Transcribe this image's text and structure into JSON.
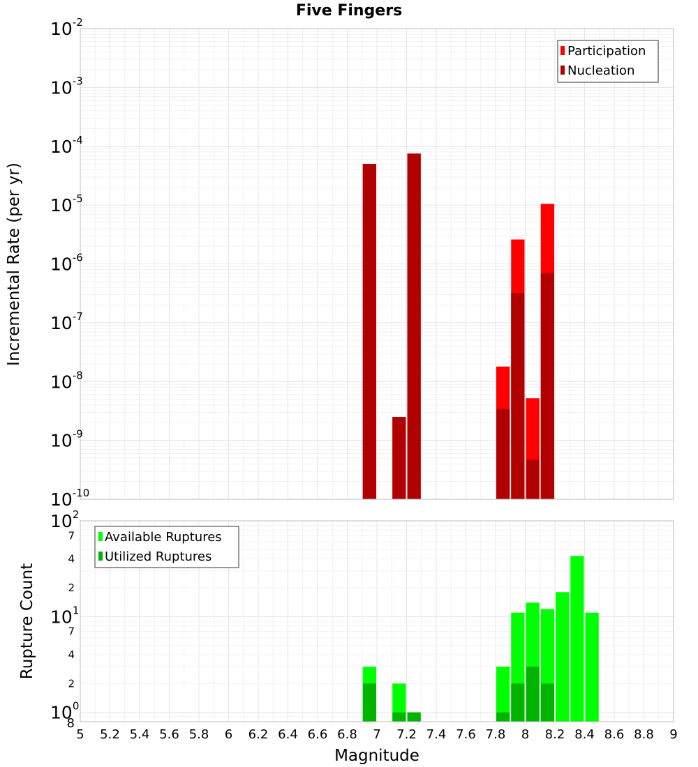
{
  "chart_data": [
    {
      "type": "bar",
      "title": "Five Fingers",
      "xlabel": "Magnitude",
      "ylabel": "Incremental Rate (per yr)",
      "yscale": "log",
      "ylim": [
        1e-10,
        0.01
      ],
      "xlim": [
        5,
        9
      ],
      "bar_width": 0.1,
      "grid": true,
      "legend_position": "top-right",
      "y_ticks": [
        {
          "base": "10",
          "exp": "-10",
          "value": 1e-10
        },
        {
          "base": "10",
          "exp": "-9",
          "value": 1e-09
        },
        {
          "base": "10",
          "exp": "-8",
          "value": 1e-08
        },
        {
          "base": "10",
          "exp": "-7",
          "value": 1e-07
        },
        {
          "base": "10",
          "exp": "-6",
          "value": 1e-06
        },
        {
          "base": "10",
          "exp": "-5",
          "value": 1e-05
        },
        {
          "base": "10",
          "exp": "-4",
          "value": 0.0001
        },
        {
          "base": "10",
          "exp": "-3",
          "value": 0.001
        },
        {
          "base": "10",
          "exp": "-2",
          "value": 0.01
        }
      ],
      "series": [
        {
          "name": "Participation",
          "color": "#ff0000",
          "x": [
            6.95,
            7.15,
            7.25,
            7.85,
            7.95,
            8.05,
            8.15
          ],
          "values": [
            5e-05,
            2.5e-09,
            7.5e-05,
            1.8e-08,
            2.6e-06,
            5.2e-09,
            1.05e-05
          ]
        },
        {
          "name": "Nucleation",
          "color": "#b00000",
          "x": [
            6.95,
            7.15,
            7.25,
            7.85,
            7.95,
            8.05,
            8.15
          ],
          "values": [
            5e-05,
            2.5e-09,
            7.5e-05,
            3.4e-09,
            3.2e-07,
            4.7e-10,
            7e-07
          ]
        }
      ]
    },
    {
      "type": "bar",
      "xlabel": "Magnitude",
      "ylabel": "Rupture Count",
      "yscale": "log",
      "ylim": [
        0.8,
        100
      ],
      "xlim": [
        5,
        9
      ],
      "bar_width": 0.1,
      "grid": true,
      "legend_position": "top-left",
      "x_ticks": [
        "5",
        "5.2",
        "5.4",
        "5.6",
        "5.8",
        "6",
        "6.2",
        "6.4",
        "6.6",
        "6.8",
        "7",
        "7.2",
        "7.4",
        "7.6",
        "7.8",
        "8",
        "8.2",
        "8.4",
        "8.6",
        "8.8",
        "9"
      ],
      "y_ticks": [
        {
          "base": "10",
          "exp": "0",
          "value": 1
        },
        {
          "base": "10",
          "exp": "1",
          "value": 10
        },
        {
          "base": "10",
          "exp": "2",
          "value": 100
        }
      ],
      "y_minor_ticks": [
        {
          "label": "8",
          "value": 0.8
        },
        {
          "label": "2",
          "value": 2
        },
        {
          "label": "4",
          "value": 4
        },
        {
          "label": "7",
          "value": 7
        },
        {
          "label": "2",
          "value": 20
        },
        {
          "label": "4",
          "value": 40
        },
        {
          "label": "7",
          "value": 70
        }
      ],
      "series": [
        {
          "name": "Available Ruptures",
          "color": "#00ff00",
          "x": [
            6.95,
            7.15,
            7.25,
            7.85,
            7.95,
            8.05,
            8.15,
            8.25,
            8.35,
            8.45
          ],
          "values": [
            3,
            2,
            1,
            3,
            11,
            14,
            12,
            18,
            43,
            11
          ]
        },
        {
          "name": "Utilized Ruptures",
          "color": "#00b400",
          "x": [
            6.95,
            7.15,
            7.25,
            7.85,
            7.95,
            8.05,
            8.15
          ],
          "values": [
            2,
            1,
            1,
            1,
            2,
            3,
            2
          ]
        }
      ]
    }
  ]
}
